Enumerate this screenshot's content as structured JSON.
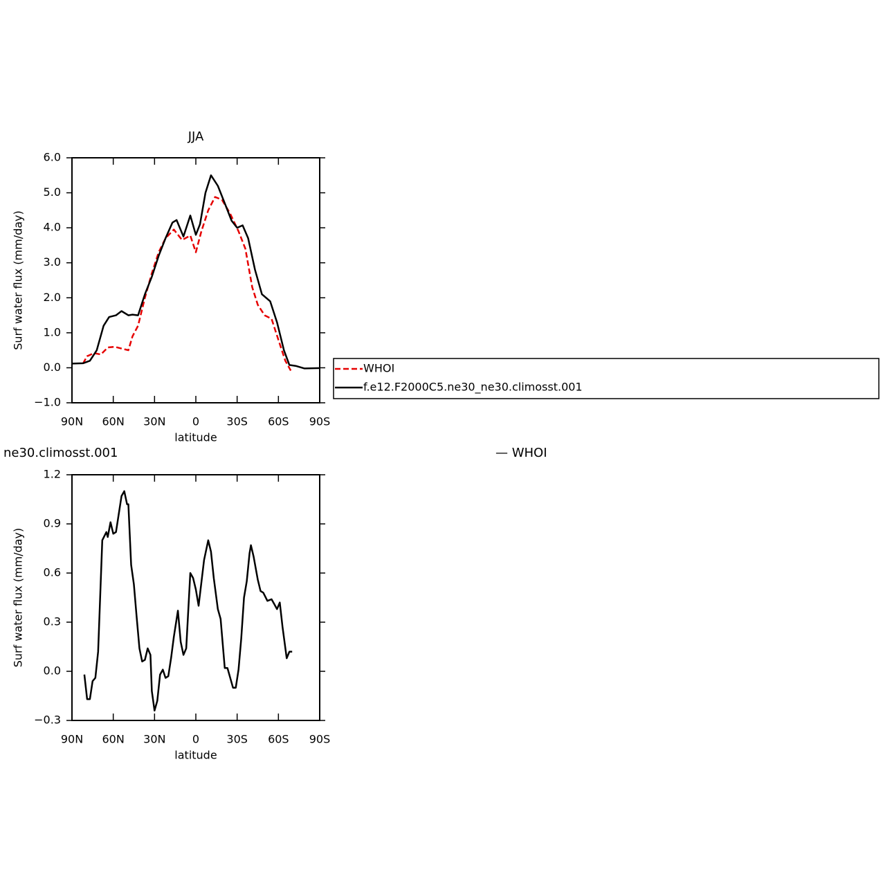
{
  "chart_data": [
    {
      "type": "line",
      "title": "JJA",
      "x_label": "latitude",
      "y_label": "Surf water flux (mm/day)",
      "xlim": [
        90,
        -90
      ],
      "xticks": [
        {
          "value": 90,
          "label": "90N"
        },
        {
          "value": 60,
          "label": "60N"
        },
        {
          "value": 30,
          "label": "30N"
        },
        0,
        {
          "value": -30,
          "label": "30S"
        },
        {
          "value": -60,
          "label": "60S"
        },
        {
          "value": -90,
          "label": "90S"
        }
      ],
      "ylim": [
        -1,
        6
      ],
      "yticks": [
        {
          "value": -1,
          "label": "−1.0"
        },
        {
          "value": 0,
          "label": "0.0"
        },
        {
          "value": 1,
          "label": "1.0"
        },
        {
          "value": 2,
          "label": "2.0"
        },
        {
          "value": 3,
          "label": "3.0"
        },
        {
          "value": 4,
          "label": "4.0"
        },
        {
          "value": 5,
          "label": "5.0"
        },
        {
          "value": 6,
          "label": "6.0"
        }
      ],
      "legend": "right",
      "series": [
        {
          "name": "WHOI",
          "color": "#e60000",
          "dashed": true,
          "x": [
            82,
            79,
            74,
            69,
            64,
            59,
            49,
            46,
            42,
            37,
            32,
            27,
            22,
            16,
            10,
            4,
            0,
            -4,
            -9,
            -14,
            -19,
            -25,
            -31,
            -36,
            -41,
            -45,
            -50,
            -55,
            -60,
            -65,
            -69
          ],
          "values": [
            0.12,
            0.33,
            0.42,
            0.38,
            0.58,
            0.6,
            0.5,
            0.9,
            1.2,
            2.0,
            2.7,
            3.3,
            3.7,
            3.95,
            3.65,
            3.78,
            3.3,
            3.9,
            4.5,
            4.88,
            4.8,
            4.4,
            3.9,
            3.4,
            2.3,
            1.8,
            1.5,
            1.4,
            0.8,
            0.2,
            -0.08
          ]
        },
        {
          "name": "f.e12.F2000C5.ne30_ne30.climosst.001",
          "color": "#000000",
          "dashed": false,
          "x": [
            90,
            82,
            77,
            72,
            67,
            63,
            58,
            54,
            49,
            46,
            42,
            37,
            32,
            27,
            22,
            17,
            14,
            9,
            4,
            0,
            -3,
            -7,
            -11,
            -16,
            -21,
            -26,
            -30,
            -34,
            -38,
            -43,
            -48,
            -54,
            -59,
            -64,
            -68,
            -73,
            -79,
            -90
          ],
          "values": [
            0.12,
            0.13,
            0.2,
            0.5,
            1.2,
            1.45,
            1.5,
            1.62,
            1.5,
            1.52,
            1.5,
            2.1,
            2.6,
            3.2,
            3.7,
            4.15,
            4.22,
            3.75,
            4.35,
            3.8,
            4.1,
            5.0,
            5.5,
            5.2,
            4.7,
            4.2,
            4.0,
            4.07,
            3.7,
            2.8,
            2.1,
            1.9,
            1.3,
            0.5,
            0.08,
            0.05,
            -0.02,
            -0.01
          ]
        }
      ]
    },
    {
      "type": "line",
      "title": "ne30.climosst.001",
      "subtitle": "— WHOI",
      "x_label": "latitude",
      "y_label": "Surf water flux (mm/day)",
      "xlim": [
        90,
        -90
      ],
      "xticks": [
        {
          "value": 90,
          "label": "90N"
        },
        {
          "value": 60,
          "label": "60N"
        },
        {
          "value": 30,
          "label": "30N"
        },
        0,
        {
          "value": -30,
          "label": "30S"
        },
        {
          "value": -60,
          "label": "60S"
        },
        {
          "value": -90,
          "label": "90S"
        }
      ],
      "ylim": [
        -0.3,
        1.2
      ],
      "yticks": [
        {
          "value": -0.3,
          "label": "−0.3"
        },
        {
          "value": 0,
          "label": "0.0"
        },
        0.3,
        0.6,
        0.9,
        1.2
      ],
      "series": [
        {
          "color": "#000000",
          "dashed": false,
          "x": [
            81,
            79,
            77,
            75,
            73,
            71,
            68,
            65,
            64,
            62,
            60,
            58,
            54,
            52,
            50,
            49,
            47,
            45,
            43,
            41,
            39,
            37,
            35,
            33,
            32,
            30,
            28,
            26,
            24,
            22,
            20,
            18,
            16,
            13,
            11,
            9,
            7,
            4,
            2,
            0,
            -2,
            -6,
            -9,
            -11,
            -13,
            -16,
            -18,
            -21,
            -23,
            -27,
            -29,
            -31,
            -33,
            -35,
            -37,
            -39,
            -40,
            -42,
            -45,
            -47,
            -49,
            -52,
            -55,
            -57,
            -59,
            -61,
            -63,
            -66,
            -68,
            -70
          ],
          "values": [
            -0.02,
            -0.17,
            -0.17,
            -0.06,
            -0.04,
            0.12,
            0.8,
            0.85,
            0.82,
            0.91,
            0.84,
            0.85,
            1.07,
            1.1,
            1.02,
            1.02,
            0.65,
            0.53,
            0.33,
            0.14,
            0.06,
            0.07,
            0.14,
            0.1,
            -0.12,
            -0.24,
            -0.18,
            -0.02,
            0.01,
            -0.04,
            -0.03,
            0.08,
            0.21,
            0.37,
            0.18,
            0.1,
            0.14,
            0.6,
            0.57,
            0.5,
            0.4,
            0.68,
            0.8,
            0.73,
            0.57,
            0.38,
            0.32,
            0.02,
            0.02,
            -0.1,
            -0.1,
            0.01,
            0.2,
            0.45,
            0.55,
            0.72,
            0.77,
            0.7,
            0.56,
            0.49,
            0.48,
            0.43,
            0.44,
            0.41,
            0.38,
            0.42,
            0.27,
            0.08,
            0.12,
            0.12
          ]
        }
      ]
    }
  ]
}
